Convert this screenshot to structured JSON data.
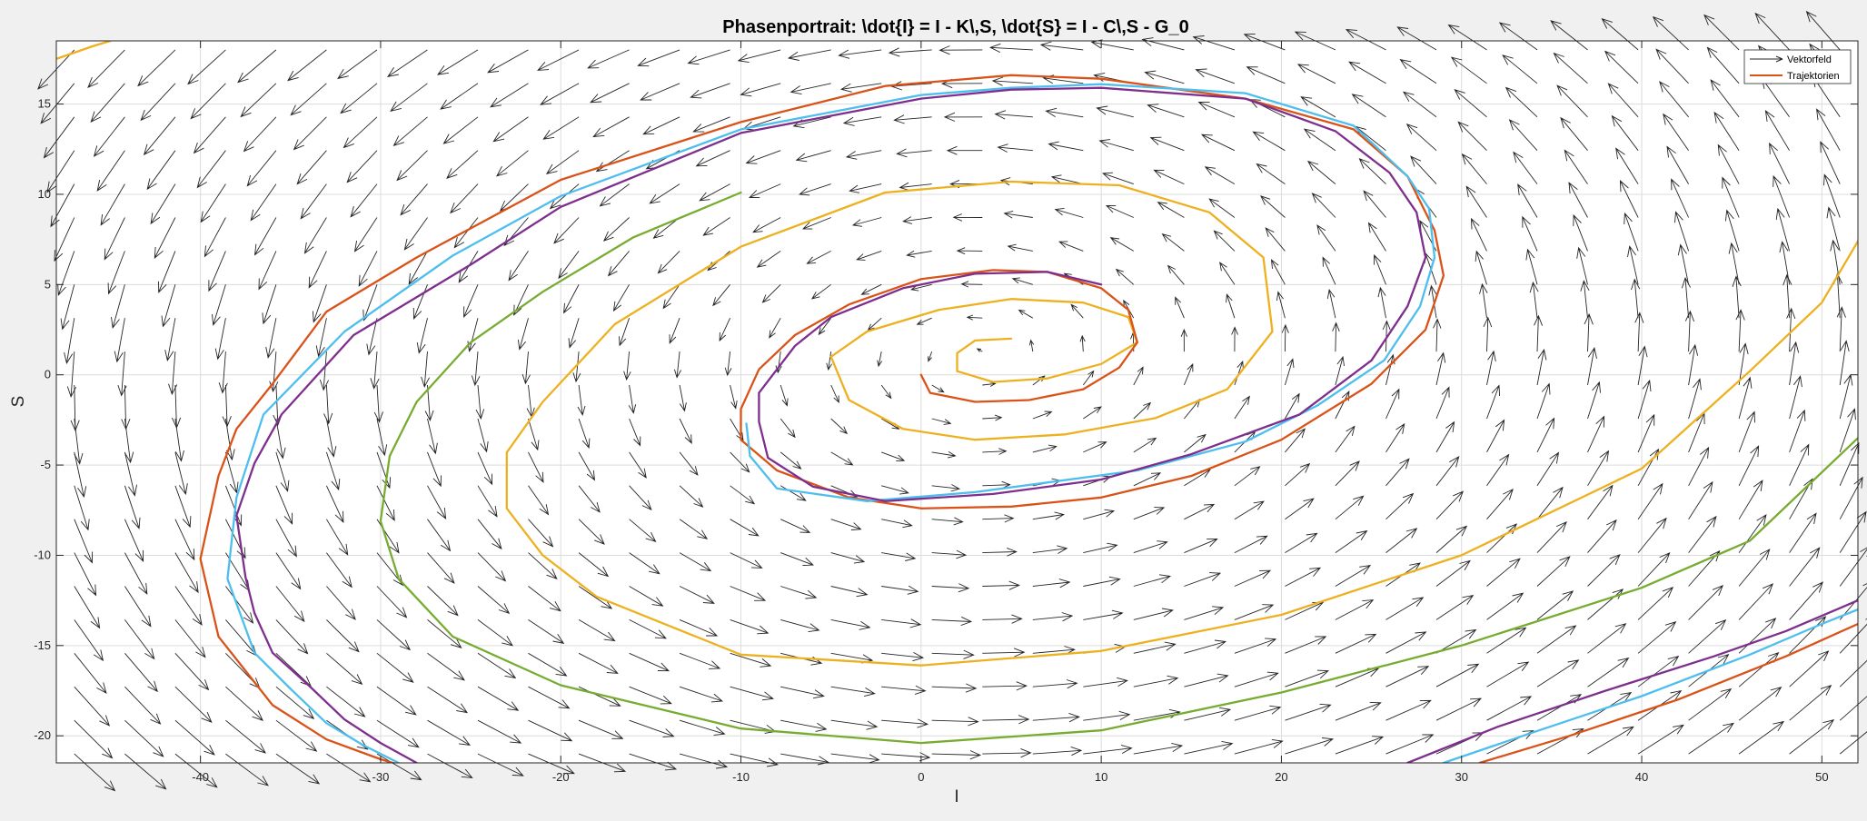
{
  "chart_data": {
    "type": "line",
    "title": "Phasenportrait: \\dot{I} = I - K\\,S,  \\dot{S} = I - C\\,S - G_0",
    "xlabel": "I",
    "ylabel": "S",
    "xlim": [
      -48,
      52
    ],
    "ylim": [
      -21.5,
      18.5
    ],
    "xticks": [
      -40,
      -30,
      -20,
      -10,
      0,
      10,
      20,
      30,
      40,
      50
    ],
    "yticks": [
      -20,
      -15,
      -10,
      -5,
      0,
      5,
      10,
      15
    ],
    "grid": true,
    "legend_position": "top-right",
    "legend": [
      "Vektorfeld",
      "Trajektorien"
    ],
    "vector_field": {
      "name": "Vektorfeld",
      "color": "#262626",
      "x_range": [
        -47,
        51
      ],
      "y_range": [
        -21,
        18
      ],
      "columns": 36,
      "rows": 22,
      "center": [
        3,
        1
      ],
      "rate_I": [
        0.06,
        -2.6
      ],
      "rate_S": [
        1.0,
        -0.04
      ]
    },
    "series": [
      {
        "color": "#77ac30",
        "points": [
          [
            -10,
            10.1
          ],
          [
            -16,
            7.6
          ],
          [
            -21,
            4.6
          ],
          [
            -25,
            1.8
          ],
          [
            -28,
            -1.5
          ],
          [
            -29.5,
            -4.5
          ],
          [
            -30,
            -8.1
          ],
          [
            -29,
            -11.3
          ],
          [
            -26,
            -14.5
          ],
          [
            -20,
            -17.2
          ],
          [
            -10,
            -19.6
          ],
          [
            0,
            -20.4
          ],
          [
            10,
            -19.7
          ],
          [
            20,
            -17.6
          ],
          [
            30,
            -15
          ],
          [
            40,
            -11.8
          ],
          [
            46,
            -9.2
          ],
          [
            52,
            -3.5
          ]
        ]
      },
      {
        "color": "#edb120",
        "points": [
          [
            5,
            2
          ],
          [
            3,
            1.9
          ],
          [
            2,
            1.2
          ],
          [
            2,
            0.2
          ],
          [
            4,
            -0.4
          ],
          [
            7,
            -0.2
          ],
          [
            10,
            0.6
          ],
          [
            12,
            1.8
          ],
          [
            11.5,
            3.2
          ],
          [
            9,
            4
          ],
          [
            5,
            4.2
          ],
          [
            1,
            3.6
          ],
          [
            -3,
            2.4
          ],
          [
            -5,
            1
          ],
          [
            -4,
            -1.4
          ],
          [
            -1,
            -3
          ],
          [
            3,
            -3.6
          ],
          [
            8,
            -3.3
          ],
          [
            13,
            -2.4
          ],
          [
            17,
            -0.8
          ],
          [
            19.5,
            2.4
          ],
          [
            19,
            6.5
          ],
          [
            16,
            9
          ],
          [
            11,
            10.5
          ],
          [
            5,
            10.7
          ],
          [
            -2,
            10.1
          ],
          [
            -10,
            7.1
          ],
          [
            -17,
            2.8
          ],
          [
            -21,
            -1.5
          ],
          [
            -23,
            -4.3
          ],
          [
            -23,
            -7.4
          ],
          [
            -21,
            -10
          ],
          [
            -18,
            -12.3
          ],
          [
            -10,
            -15.5
          ],
          [
            0,
            -16.1
          ],
          [
            10,
            -15.3
          ],
          [
            20,
            -13.3
          ],
          [
            30,
            -10
          ],
          [
            40,
            -5.2
          ],
          [
            46,
            0.2
          ],
          [
            50,
            4
          ],
          [
            52,
            7.4
          ]
        ]
      },
      {
        "color": "#d95319",
        "points": [
          [
            0,
            0
          ],
          [
            0.5,
            -1
          ],
          [
            3,
            -1.5
          ],
          [
            6,
            -1.4
          ],
          [
            9,
            -0.8
          ],
          [
            11,
            0.4
          ],
          [
            12,
            1.8
          ],
          [
            11.5,
            3.6
          ],
          [
            10,
            4.8
          ],
          [
            7,
            5.7
          ],
          [
            4,
            5.8
          ],
          [
            0,
            5.3
          ],
          [
            -4,
            3.9
          ],
          [
            -7,
            2.2
          ],
          [
            -9,
            0.3
          ],
          [
            -10,
            -1.9
          ],
          [
            -10,
            -3.6
          ],
          [
            -8,
            -5.3
          ],
          [
            -4,
            -6.8
          ],
          [
            0,
            -7.4
          ],
          [
            5,
            -7.3
          ],
          [
            10,
            -6.8
          ],
          [
            15,
            -5.6
          ],
          [
            20,
            -3.6
          ],
          [
            25,
            -0.5
          ],
          [
            28,
            2.5
          ],
          [
            29,
            5.5
          ],
          [
            28.5,
            8
          ],
          [
            27,
            11
          ],
          [
            24,
            13.6
          ],
          [
            18,
            15.3
          ],
          [
            10,
            16.4
          ],
          [
            5,
            16.6
          ],
          [
            -2,
            16
          ],
          [
            -10,
            14
          ],
          [
            -20,
            10.8
          ],
          [
            -28,
            6.5
          ],
          [
            -33,
            3.5
          ],
          [
            -36,
            -0.5
          ],
          [
            -38,
            -3
          ],
          [
            -39,
            -5.6
          ],
          [
            -40,
            -10.2
          ],
          [
            -39,
            -14.5
          ],
          [
            -36,
            -18.3
          ],
          [
            -33,
            -20.2
          ],
          [
            -30,
            -21.3
          ],
          [
            -29,
            -21.6
          ]
        ]
      },
      {
        "color": "#4dbeee",
        "points": [
          [
            -29,
            -21.5
          ],
          [
            -31,
            -20.5
          ],
          [
            -33,
            -19.3
          ],
          [
            -35,
            -17.4
          ],
          [
            -37,
            -15.4
          ],
          [
            -38.5,
            -11.3
          ],
          [
            -38,
            -6.8
          ],
          [
            -36.5,
            -2.2
          ],
          [
            -32,
            2.4
          ],
          [
            -26,
            6.6
          ],
          [
            -20,
            9.9
          ],
          [
            -10,
            13.6
          ],
          [
            0,
            15.5
          ],
          [
            5,
            15.9
          ],
          [
            10,
            16.1
          ],
          [
            18,
            15.6
          ],
          [
            24,
            13.8
          ],
          [
            27,
            11
          ],
          [
            28.2,
            9.2
          ],
          [
            28.5,
            6.5
          ],
          [
            27.7,
            3.8
          ],
          [
            25.7,
            0.8
          ],
          [
            22,
            -1.7
          ],
          [
            18,
            -3.7
          ],
          [
            12,
            -5.3
          ],
          [
            3,
            -6.5
          ],
          [
            -3,
            -7
          ],
          [
            -8,
            -6.3
          ],
          [
            -9.5,
            -4.5
          ],
          [
            -9.7,
            -2.7
          ]
        ]
      },
      {
        "color": "#7e2f8e",
        "points": [
          [
            -28,
            -21.5
          ],
          [
            -30,
            -20.4
          ],
          [
            -32,
            -19.1
          ],
          [
            -34,
            -17.2
          ],
          [
            -36,
            -15.4
          ],
          [
            -37,
            -13.2
          ],
          [
            -37.5,
            -11.2
          ],
          [
            -38,
            -7.8
          ],
          [
            -37,
            -4.9
          ],
          [
            -35.5,
            -2.2
          ],
          [
            -31.5,
            2.2
          ],
          [
            -25,
            6.1
          ],
          [
            -20,
            9.3
          ],
          [
            -10,
            13.4
          ],
          [
            0,
            15.3
          ],
          [
            5,
            15.8
          ],
          [
            10,
            15.9
          ],
          [
            18,
            15.3
          ],
          [
            23,
            13.5
          ],
          [
            26,
            11.2
          ],
          [
            27.5,
            9
          ],
          [
            28,
            6.5
          ],
          [
            27,
            3.8
          ],
          [
            25,
            0.8
          ],
          [
            21,
            -2.2
          ],
          [
            15,
            -4.4
          ],
          [
            10,
            -5.8
          ],
          [
            4,
            -6.6
          ],
          [
            -2,
            -7
          ],
          [
            -6,
            -6.2
          ],
          [
            -8.5,
            -4.6
          ],
          [
            -9,
            -2.6
          ],
          [
            -9,
            -1
          ],
          [
            -7,
            1.6
          ],
          [
            -5,
            3.2
          ],
          [
            -1,
            4.8
          ],
          [
            3,
            5.6
          ],
          [
            7,
            5.7
          ],
          [
            10,
            5
          ]
        ]
      },
      {
        "color": "#7e2f8e",
        "points": [
          [
            27,
            -21.5
          ],
          [
            32,
            -19.5
          ],
          [
            38,
            -17.5
          ],
          [
            44,
            -15.6
          ],
          [
            48,
            -14.2
          ],
          [
            52,
            -12.5
          ]
        ]
      },
      {
        "color": "#4dbeee",
        "points": [
          [
            29,
            -21.5
          ],
          [
            34,
            -19.8
          ],
          [
            40,
            -17.8
          ],
          [
            46,
            -15.5
          ],
          [
            50,
            -13.8
          ],
          [
            52,
            -13
          ]
        ]
      },
      {
        "color": "#d95319",
        "points": [
          [
            31,
            -21.5
          ],
          [
            36,
            -20
          ],
          [
            42,
            -18
          ],
          [
            48,
            -15.6
          ],
          [
            52,
            -13.8
          ]
        ]
      },
      {
        "color": "#edb120",
        "points": [
          [
            -48,
            17.5
          ],
          [
            -46,
            18.2
          ],
          [
            -45,
            18.5
          ]
        ]
      }
    ]
  }
}
